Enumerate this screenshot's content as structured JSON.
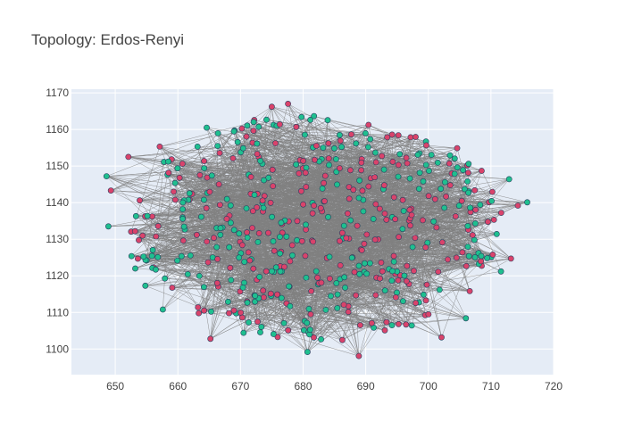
{
  "chart_data": {
    "type": "scatter",
    "title": "Topology: Erdos-Renyi",
    "xlabel": "",
    "ylabel": "",
    "xlim": [
      643,
      720
    ],
    "ylim": [
      1093,
      1171
    ],
    "x_ticks": [
      650,
      660,
      670,
      680,
      690,
      700,
      710,
      720
    ],
    "y_ticks": [
      1100,
      1110,
      1120,
      1130,
      1140,
      1150,
      1160,
      1170
    ],
    "grid": true,
    "legend": "none",
    "colors": {
      "plot_background": "#e5ecf6",
      "grid": "#ffffff",
      "edges": "#808080",
      "node_green": "#1fbf8f",
      "node_red": "#d9436b",
      "node_outline": "#2a3f5f"
    },
    "node_sample_count": 520,
    "nodes_sampled": [
      {
        "x": 648.6,
        "y": 1147.2,
        "group": "green"
      },
      {
        "x": 649.3,
        "y": 1143.3,
        "group": "red"
      },
      {
        "x": 648.9,
        "y": 1133.5,
        "group": "green"
      },
      {
        "x": 652.1,
        "y": 1152.5,
        "group": "red"
      },
      {
        "x": 652.6,
        "y": 1125.4,
        "group": "green"
      },
      {
        "x": 653.2,
        "y": 1122.0,
        "group": "green"
      },
      {
        "x": 654.8,
        "y": 1117.3,
        "group": "green"
      },
      {
        "x": 657.1,
        "y": 1155.3,
        "group": "red"
      },
      {
        "x": 657.6,
        "y": 1110.8,
        "group": "green"
      },
      {
        "x": 664.6,
        "y": 1160.5,
        "group": "green"
      },
      {
        "x": 665.2,
        "y": 1102.8,
        "group": "red"
      },
      {
        "x": 672.2,
        "y": 1162.6,
        "group": "red"
      },
      {
        "x": 675.0,
        "y": 1166.2,
        "group": "red"
      },
      {
        "x": 677.6,
        "y": 1167.0,
        "group": "red"
      },
      {
        "x": 680.7,
        "y": 1099.2,
        "group": "green"
      },
      {
        "x": 688.9,
        "y": 1098.1,
        "group": "red"
      },
      {
        "x": 694.2,
        "y": 1158.6,
        "group": "red"
      },
      {
        "x": 702.1,
        "y": 1103.2,
        "group": "red"
      },
      {
        "x": 704.6,
        "y": 1154.9,
        "group": "red"
      },
      {
        "x": 706.0,
        "y": 1108.4,
        "group": "green"
      },
      {
        "x": 708.5,
        "y": 1148.7,
        "group": "red"
      },
      {
        "x": 711.6,
        "y": 1121.2,
        "group": "green"
      },
      {
        "x": 712.9,
        "y": 1146.4,
        "group": "green"
      },
      {
        "x": 713.2,
        "y": 1124.7,
        "group": "red"
      },
      {
        "x": 714.3,
        "y": 1139.2,
        "group": "red"
      },
      {
        "x": 715.8,
        "y": 1140.1,
        "group": "green"
      }
    ]
  }
}
